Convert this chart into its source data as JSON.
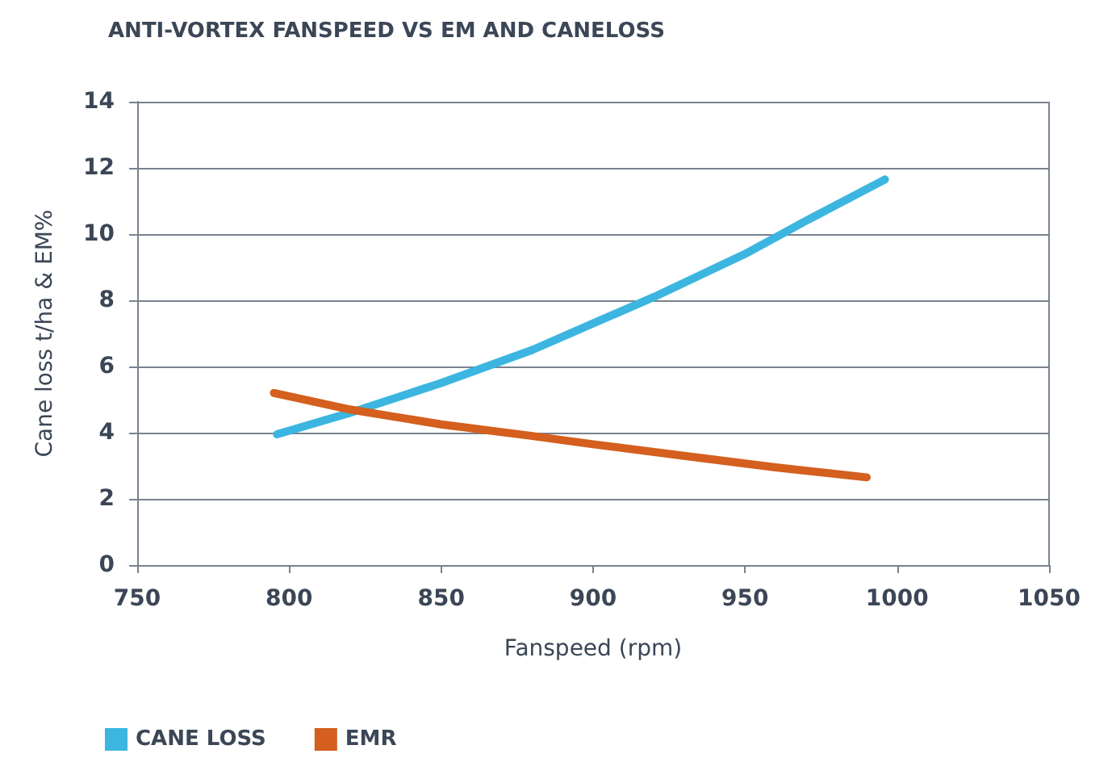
{
  "chart_data": {
    "type": "line",
    "title": "ANTI-VORTEX FANSPEED VS EM AND CANELOSS",
    "xlabel": "Fanspeed (rpm)",
    "ylabel": "Cane loss t/ha & EM%",
    "series": [
      {
        "name": "CANE LOSS",
        "color": "#3cb6e0",
        "x": [
          796,
          820,
          850,
          880,
          900,
          920,
          950,
          970,
          996
        ],
        "values": [
          3.95,
          4.6,
          5.5,
          6.5,
          7.3,
          8.1,
          9.4,
          10.4,
          11.65
        ]
      },
      {
        "name": "EMR",
        "color": "#d45f1e",
        "x": [
          795,
          820,
          850,
          880,
          900,
          930,
          960,
          990
        ],
        "values": [
          5.2,
          4.7,
          4.25,
          3.9,
          3.65,
          3.3,
          2.95,
          2.65
        ]
      }
    ],
    "xlim": [
      750,
      1050
    ],
    "xticks": [
      750,
      800,
      850,
      900,
      950,
      1000,
      1050
    ],
    "ylim": [
      0,
      14
    ],
    "yticks": [
      0,
      2,
      4,
      6,
      8,
      10,
      12,
      14
    ],
    "grid": "y",
    "legend": "bottom left",
    "marker": "none",
    "line_style": "solid"
  }
}
